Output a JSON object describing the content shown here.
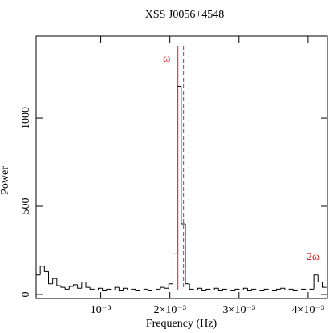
{
  "chart_data": {
    "type": "step-histogram",
    "title": "XSS J0056+4548",
    "xlabel": "Frequency (Hz)",
    "ylabel": "Power",
    "bins": [
      6.4e-05,
      0.000124,
      0.000184,
      0.000244,
      0.000304,
      0.000364,
      0.000424,
      0.000484,
      0.000544,
      0.000604,
      0.000664,
      0.000724,
      0.000784,
      0.000844,
      0.000904,
      0.000964,
      0.001024,
      0.001084,
      0.001144,
      0.001204,
      0.001264,
      0.001324,
      0.001384,
      0.001444,
      0.001504,
      0.001564,
      0.001624,
      0.001684,
      0.001744,
      0.001804,
      0.001864,
      0.001924,
      0.001984,
      0.002044,
      0.002104,
      0.002164,
      0.002224,
      0.002284,
      0.002344,
      0.002404,
      0.002464,
      0.002524,
      0.002584,
      0.002644,
      0.002704,
      0.002764,
      0.002824,
      0.002884,
      0.002944,
      0.003004,
      0.003064,
      0.003124,
      0.003184,
      0.003244,
      0.003304,
      0.003364,
      0.003424,
      0.003484,
      0.003544,
      0.003604,
      0.003664,
      0.003724,
      0.003784,
      0.003844,
      0.003904,
      0.003964,
      0.004024,
      0.004084,
      0.004144,
      0.004204,
      0.004264
    ],
    "values": [
      110,
      160,
      130,
      60,
      90,
      50,
      40,
      30,
      45,
      55,
      35,
      70,
      40,
      30,
      25,
      35,
      20,
      30,
      25,
      40,
      20,
      35,
      25,
      30,
      20,
      25,
      30,
      20,
      25,
      30,
      40,
      35,
      60,
      230,
      1180,
      400,
      60,
      30,
      25,
      35,
      20,
      30,
      25,
      35,
      20,
      30,
      25,
      20,
      30,
      25,
      35,
      20,
      30,
      25,
      20,
      30,
      25,
      20,
      30,
      35,
      25,
      30,
      20,
      25,
      30,
      25,
      30,
      110,
      70,
      40
    ],
    "color": "#000000",
    "markers": [
      {
        "label": "ω",
        "x": 0.002116,
        "color": "#e02020",
        "dash": false
      },
      {
        "x": 0.002197,
        "color": "#5050c0",
        "dash": true
      }
    ],
    "annotation": "2ω",
    "annotation_color": "#e02020",
    "xlim": [
      6.4e-05,
      0.00428
    ],
    "ylim": [
      -23,
      1464
    ],
    "xticks": [
      {
        "value": 0.001,
        "label": "10⁻³"
      },
      {
        "value": 0.002,
        "label": "2×10⁻³"
      },
      {
        "value": 0.003,
        "label": "3×10⁻³"
      },
      {
        "value": 0.004,
        "label": "4×10⁻³"
      }
    ],
    "yticks": [
      0,
      500,
      1000
    ]
  }
}
